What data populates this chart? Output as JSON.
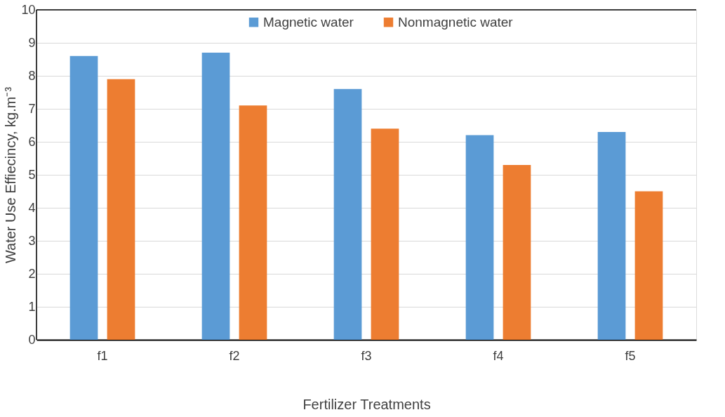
{
  "chart_data": {
    "type": "bar",
    "xlabel": "Fertilizer Treatments",
    "ylabel": "Water Use Effiecincy, kg.m⁻³",
    "categories": [
      "f1",
      "f2",
      "f3",
      "f4",
      "f5"
    ],
    "series": [
      {
        "name": "Magnetic water",
        "color": "#5b9bd5",
        "values": [
          8.6,
          8.7,
          7.6,
          6.2,
          6.3
        ]
      },
      {
        "name": "Nonmagnetic water",
        "color": "#ed7d31",
        "values": [
          7.9,
          7.1,
          6.4,
          5.3,
          4.5
        ]
      }
    ],
    "ylim": [
      0,
      10
    ],
    "yticks": [
      0,
      1,
      2,
      3,
      4,
      5,
      6,
      7,
      8,
      9,
      10
    ],
    "grid": "y",
    "legend": "top"
  }
}
